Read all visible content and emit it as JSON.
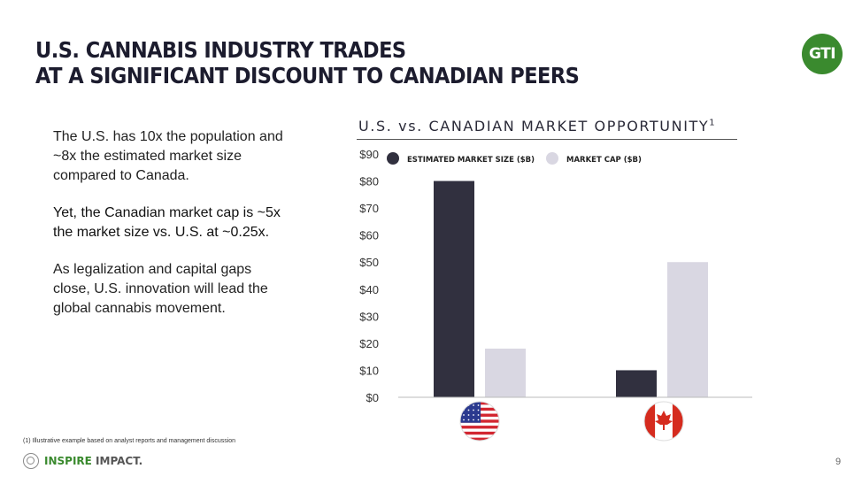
{
  "slide": {
    "title_line1": "U.S. CANNABIS INDUSTRY TRADES",
    "title_line2": "AT A SIGNIFICANT DISCOUNT TO CANADIAN PEERS",
    "logo_text": "GTI",
    "paragraph1": "The U.S. has 10x the population and ~8x the estimated market size compared to Canada.",
    "paragraph2": "Yet, the Canadian market cap is ~5x the market size vs. U.S. at ~0.25x.",
    "paragraph3": "As legalization and capital gaps close, U.S. innovation will lead the global cannabis movement.",
    "footnote": "(1) Illustrative example based on analyst reports and management discussion",
    "footer_brand_part1": "INSPIRE",
    "footer_brand_part2": " IMPACT.",
    "page_number": "9"
  },
  "colors": {
    "dark_series": "#31303f",
    "light_series": "#d9d7e2",
    "brand_green": "#3a8a2e"
  },
  "chart_data": {
    "type": "bar",
    "title": "U.S. vs. CANADIAN MARKET OPPORTUNITY",
    "title_superscript": "1",
    "categories": [
      "U.S.",
      "Canada"
    ],
    "category_icons": [
      "us-flag-icon",
      "canada-flag-icon"
    ],
    "series": [
      {
        "name": "ESTIMATED MARKET SIZE ($B)",
        "values": [
          80,
          10
        ],
        "color": "#31303f"
      },
      {
        "name": "MARKET CAP ($B)",
        "values": [
          18,
          50
        ],
        "color": "#d9d7e2"
      }
    ],
    "ylim": [
      0,
      90
    ],
    "yticks": [
      "$0",
      "$10",
      "$20",
      "$30",
      "$40",
      "$50",
      "$60",
      "$70",
      "$80",
      "$90"
    ],
    "legend": "top",
    "grid": false
  }
}
